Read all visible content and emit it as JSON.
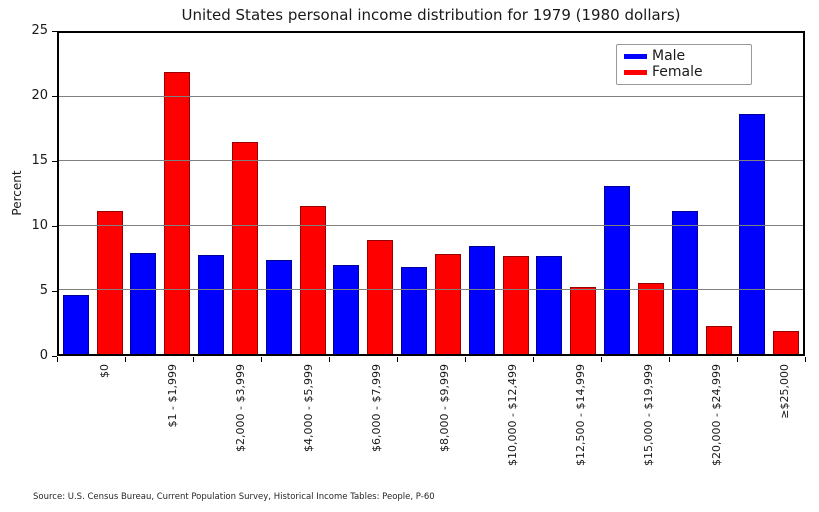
{
  "title": "United States personal income distribution for 1979 (1980 dollars)",
  "source": "Source: U.S. Census Bureau, Current Population Survey, Historical Income Tables: People, P-60",
  "chart_data": {
    "type": "bar",
    "title": "United States personal income distribution for 1979 (1980 dollars)",
    "xlabel": "",
    "ylabel": "Percent",
    "ylim": [
      0,
      25
    ],
    "y_ticks": [
      0,
      5,
      10,
      15,
      20,
      25
    ],
    "grid": "horizontal gray lines at each y tick",
    "legend_position": "upper right",
    "categories": [
      "$0",
      "$1 - $1,999",
      "$2,000 - $3,999",
      "$4,000 - $5,999",
      "$6,000 - $7,999",
      "$8,000 - $9,999",
      "$10,000 - $12,499",
      "$12,500 - $14,999",
      "$15,000 - $19,999",
      "$20,000 - $24,999",
      "≥$25,000"
    ],
    "series": [
      {
        "name": "Male",
        "color": "#0000ff",
        "values": [
          4.6,
          7.9,
          7.7,
          7.3,
          6.9,
          6.8,
          8.4,
          7.6,
          13.1,
          11.1,
          18.7
        ]
      },
      {
        "name": "Female",
        "color": "#ff0000",
        "values": [
          11.1,
          22.0,
          16.5,
          11.5,
          8.9,
          7.8,
          7.6,
          5.2,
          5.5,
          2.2,
          1.8
        ]
      }
    ]
  }
}
